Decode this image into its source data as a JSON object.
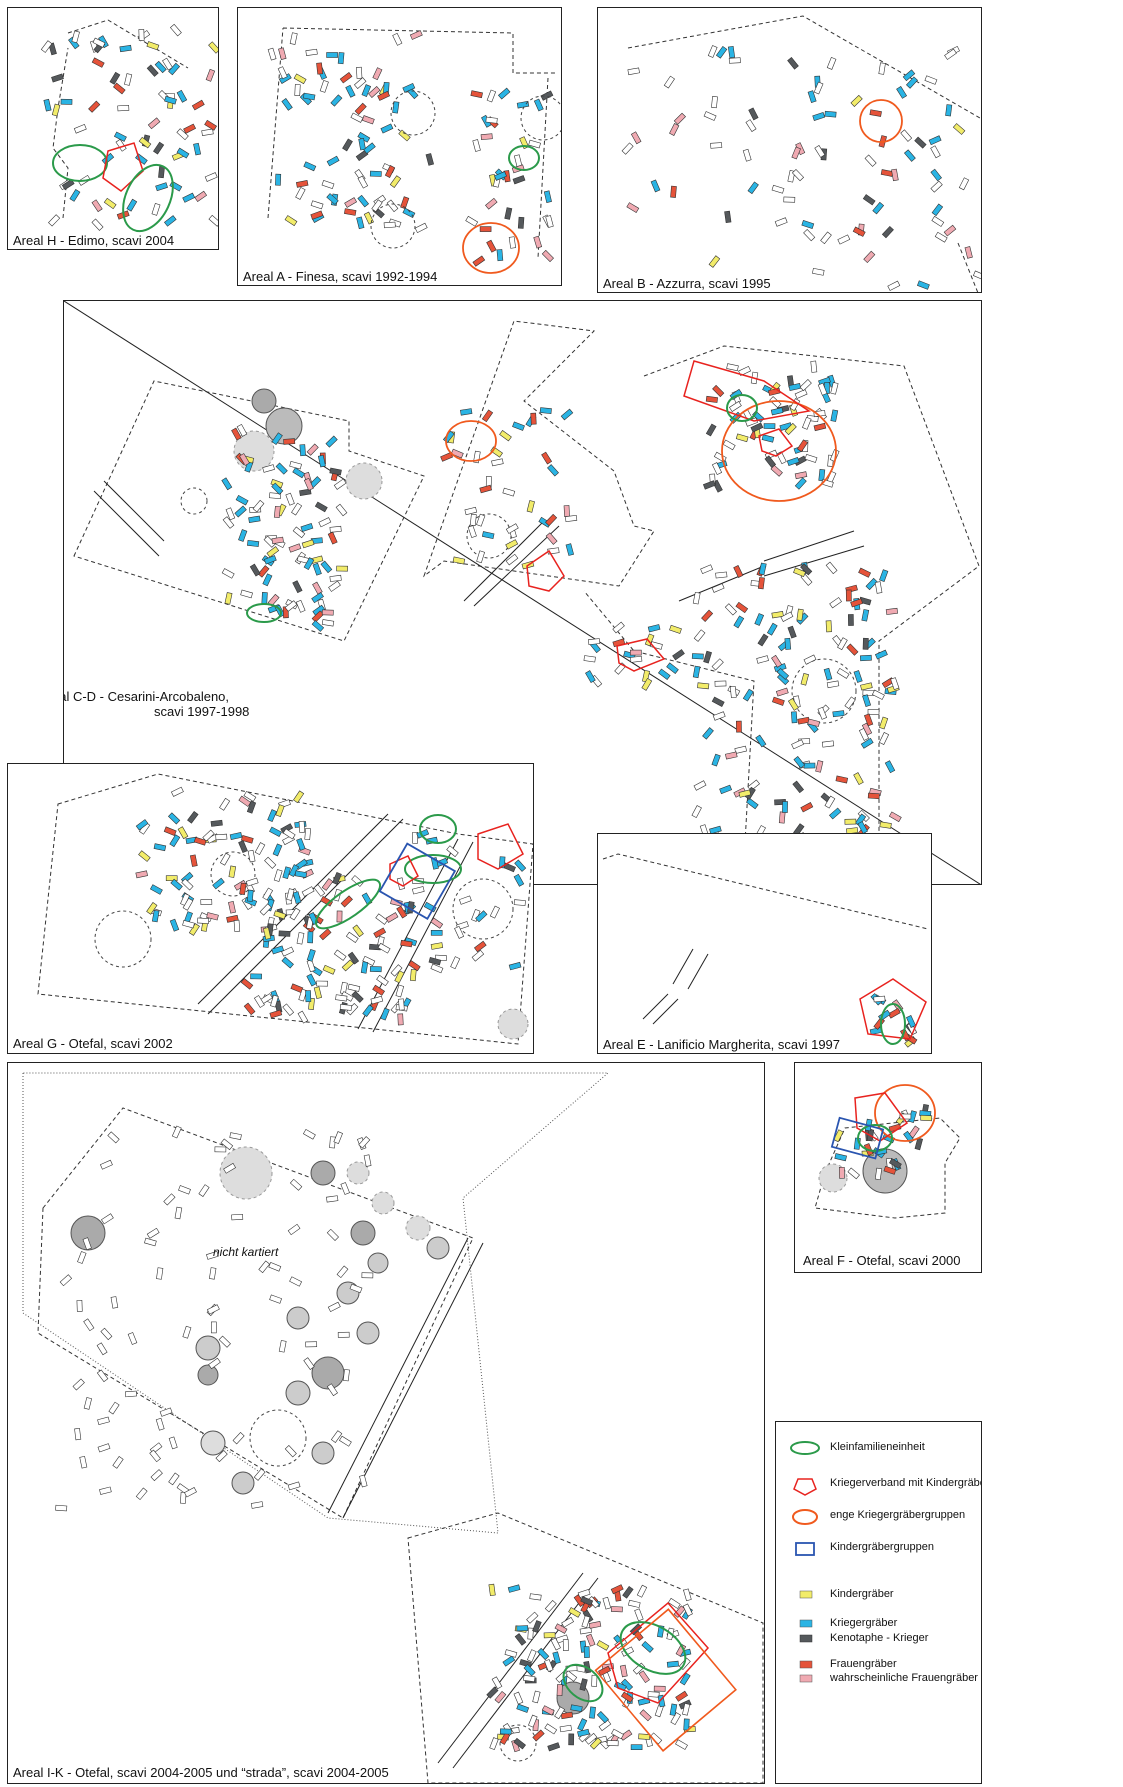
{
  "colors": {
    "child": "#f2ec6a",
    "warrior": "#2ab4e4",
    "cenotaph": "#55595c",
    "woman": "#e5533a",
    "probable_woman": "#f0aab2",
    "family_unit": "#2b9a4a",
    "warrior_band": "#e8231f",
    "warrior_group": "#f05a1e",
    "child_group": "#2a55b0"
  },
  "panels": {
    "h": {
      "caption": "Areal H - Edimo, scavi 2004"
    },
    "a": {
      "caption": "Areal A - Finesa, scavi 1992-1994"
    },
    "b": {
      "caption": "Areal B - Azzurra, scavi 1995"
    },
    "cd": {
      "caption_line1": "Areal C-D - Cesarini-Arcobaleno,",
      "caption_line2": "scavi 1997-1998"
    },
    "g": {
      "caption": "Areal G - Otefal, scavi 2002"
    },
    "e": {
      "caption": "Areal E - Lanificio Margherita, scavi 1997"
    },
    "f": {
      "caption": "Areal F - Otefal, scavi 2000"
    },
    "ik": {
      "caption": "Areal I-K - Otefal, scavi 2004-2005 und “strada”, scavi 2004-2005",
      "note": "nicht kartiert"
    }
  },
  "legend": {
    "family_unit": "Kleinfamilieneinheit",
    "warrior_band": "Kriegerverband mit Kindergräbern",
    "warrior_group": "enge Kriegergräbergruppen",
    "child_group": "Kindergräbergruppen",
    "child": "Kindergräber",
    "warrior": "Kriegergräber",
    "cenotaph": "Kenotaphe - Krieger",
    "woman": "Frauengräber",
    "probable_woman": "wahrscheinliche Frauengräber"
  }
}
